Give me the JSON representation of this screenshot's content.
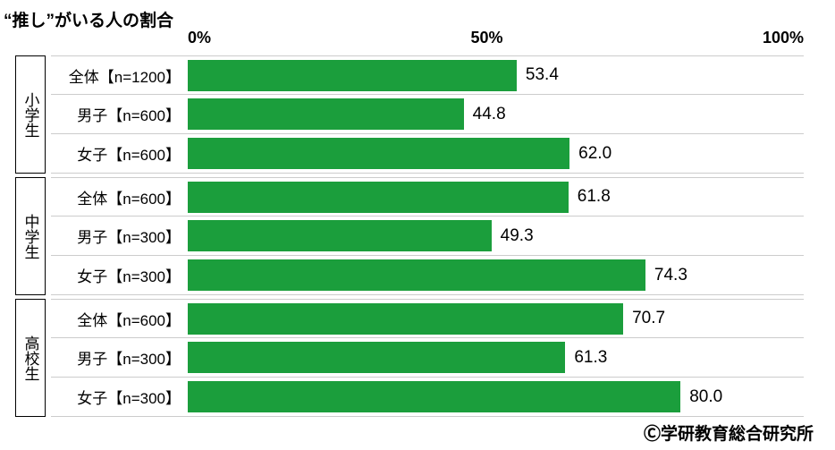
{
  "title": "“推し”がいる人の割合",
  "axis": {
    "ticks": [
      "0%",
      "50%",
      "100%"
    ],
    "min": 0,
    "max": 100
  },
  "bar_color": "#1b9e3c",
  "background_color": "#ffffff",
  "divider_color": "#cccccc",
  "title_fontsize": 19,
  "axis_fontsize": 18,
  "label_fontsize": 17,
  "value_fontsize": 19,
  "groups": [
    {
      "label": "小学生",
      "rows": [
        {
          "label": "全体【n=1200】",
          "value": 53.4,
          "display": "53.4"
        },
        {
          "label": "男子【n=600】",
          "value": 44.8,
          "display": "44.8"
        },
        {
          "label": "女子【n=600】",
          "value": 62.0,
          "display": "62.0"
        }
      ]
    },
    {
      "label": "中学生",
      "rows": [
        {
          "label": "全体【n=600】",
          "value": 61.8,
          "display": "61.8"
        },
        {
          "label": "男子【n=300】",
          "value": 49.3,
          "display": "49.3"
        },
        {
          "label": "女子【n=300】",
          "value": 74.3,
          "display": "74.3"
        }
      ]
    },
    {
      "label": "高校生",
      "rows": [
        {
          "label": "全体【n=600】",
          "value": 70.7,
          "display": "70.7"
        },
        {
          "label": "男子【n=300】",
          "value": 61.3,
          "display": "61.3"
        },
        {
          "label": "女子【n=300】",
          "value": 80.0,
          "display": "80.0"
        }
      ]
    }
  ],
  "credit": "Ⓒ学研教育総合研究所"
}
